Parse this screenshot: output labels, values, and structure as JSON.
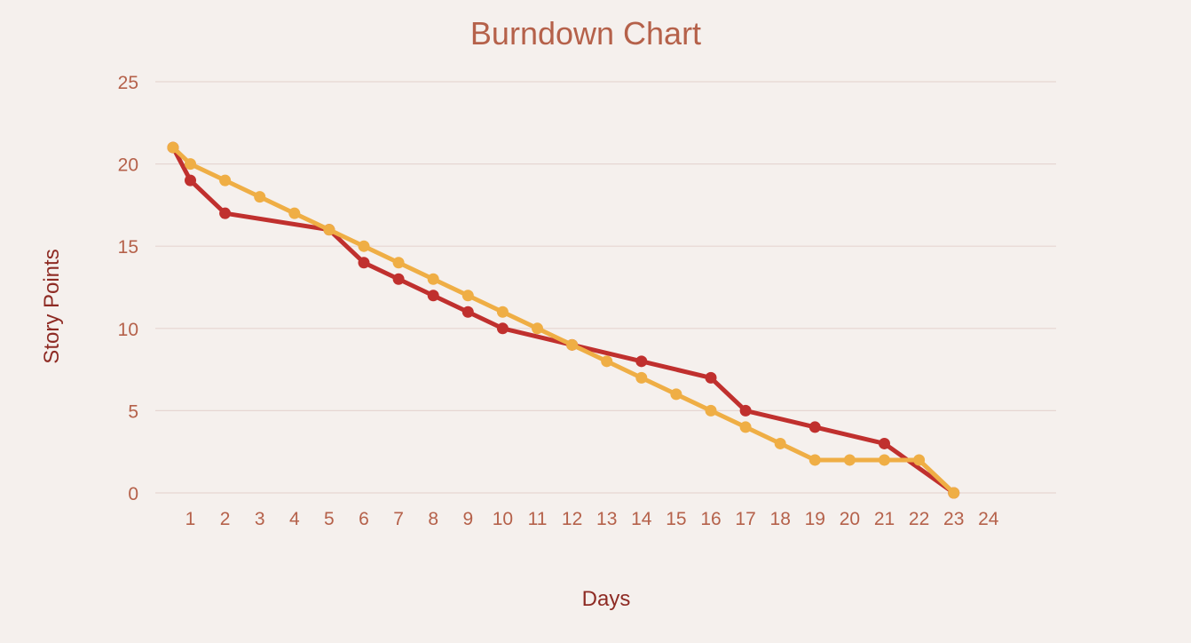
{
  "chart_data": {
    "type": "line",
    "title": "Burndown Chart",
    "xlabel": "Days",
    "ylabel": "Story Points",
    "xlim": [
      0,
      25
    ],
    "ylim": [
      0,
      25
    ],
    "x_ticks": [
      1,
      2,
      3,
      4,
      5,
      6,
      7,
      8,
      9,
      10,
      11,
      12,
      13,
      14,
      15,
      16,
      17,
      18,
      19,
      20,
      21,
      22,
      23,
      24
    ],
    "y_ticks": [
      0,
      5,
      10,
      15,
      20,
      25
    ],
    "grid": true,
    "legend": "none",
    "colors": {
      "actual": "#c0302e",
      "ideal": "#efae45",
      "title": "#b5614a",
      "tick": "#b5614a",
      "axis_title": "#8e2b24",
      "background": "#f5f0ed"
    },
    "series": [
      {
        "key": "actual",
        "x": [
          0.5,
          1,
          2,
          5,
          6,
          7,
          8,
          9,
          10,
          12,
          14,
          16,
          17,
          19,
          21,
          23
        ],
        "values": [
          21,
          19,
          17,
          16,
          14,
          13,
          12,
          11,
          10,
          9,
          8,
          7,
          5,
          4,
          3,
          0
        ]
      },
      {
        "key": "ideal",
        "x": [
          0.5,
          1,
          2,
          3,
          4,
          5,
          6,
          7,
          8,
          9,
          10,
          11,
          12,
          13,
          14,
          15,
          16,
          17,
          18,
          19,
          20,
          21,
          22,
          23
        ],
        "values": [
          21,
          20,
          19,
          18,
          17,
          16,
          15,
          14,
          13,
          12,
          11,
          10,
          9,
          8,
          7,
          6,
          5,
          4,
          3,
          2,
          2,
          2,
          2,
          0
        ]
      }
    ]
  }
}
